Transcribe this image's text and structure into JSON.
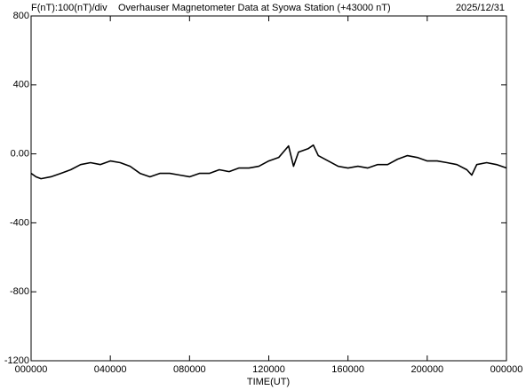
{
  "chart_data": {
    "type": "line",
    "title": "Overhauser Magnetometer Data at Syowa Station (+43000 nT)",
    "scale_label": "F(nT):100(nT)/div",
    "date": "2025/12/31",
    "x_label": "TIME(UT)",
    "x": [
      0,
      0.25,
      0.5,
      1,
      1.5,
      2,
      2.5,
      3,
      3.5,
      4,
      4.5,
      5,
      5.5,
      6,
      6.5,
      7,
      7.5,
      8,
      8.5,
      9,
      9.5,
      10,
      10.5,
      11,
      11.5,
      12,
      12.5,
      13,
      13.25,
      13.5,
      14,
      14.25,
      14.5,
      15,
      15.5,
      16,
      16.5,
      17,
      17.5,
      18,
      18.5,
      19,
      19.5,
      20,
      20.5,
      21,
      21.5,
      22,
      22.25,
      22.5,
      23,
      23.5,
      24
    ],
    "series": [
      {
        "color": "#000000",
        "values": [
          -113,
          -133,
          -144,
          -133,
          -113,
          -92,
          -62,
          -51,
          -62,
          -41,
          -51,
          -72,
          -113,
          -133,
          -113,
          -113,
          -123,
          -133,
          -113,
          -113,
          -92,
          -103,
          -82,
          -82,
          -72,
          -41,
          -21,
          46,
          -72,
          10,
          31,
          51,
          -10,
          -41,
          -72,
          -82,
          -72,
          -82,
          -62,
          -62,
          -31,
          -10,
          -21,
          -41,
          -41,
          -51,
          -62,
          -92,
          -123,
          -62,
          -51,
          -62,
          -82
        ]
      }
    ],
    "xlim": [
      0,
      24
    ],
    "xticks": [
      {
        "value": 0,
        "label": "000000"
      },
      {
        "value": 4,
        "label": "040000"
      },
      {
        "value": 8,
        "label": "080000"
      },
      {
        "value": 12,
        "label": "120000"
      },
      {
        "value": 16,
        "label": "160000"
      },
      {
        "value": 20,
        "label": "200000"
      },
      {
        "value": 24,
        "label": "000000"
      }
    ],
    "ylim": [
      -1200,
      800
    ],
    "yticks": [
      -1200,
      -800,
      -400,
      {
        "value": 0,
        "label": "0.00"
      },
      400,
      800
    ],
    "grid": false
  }
}
